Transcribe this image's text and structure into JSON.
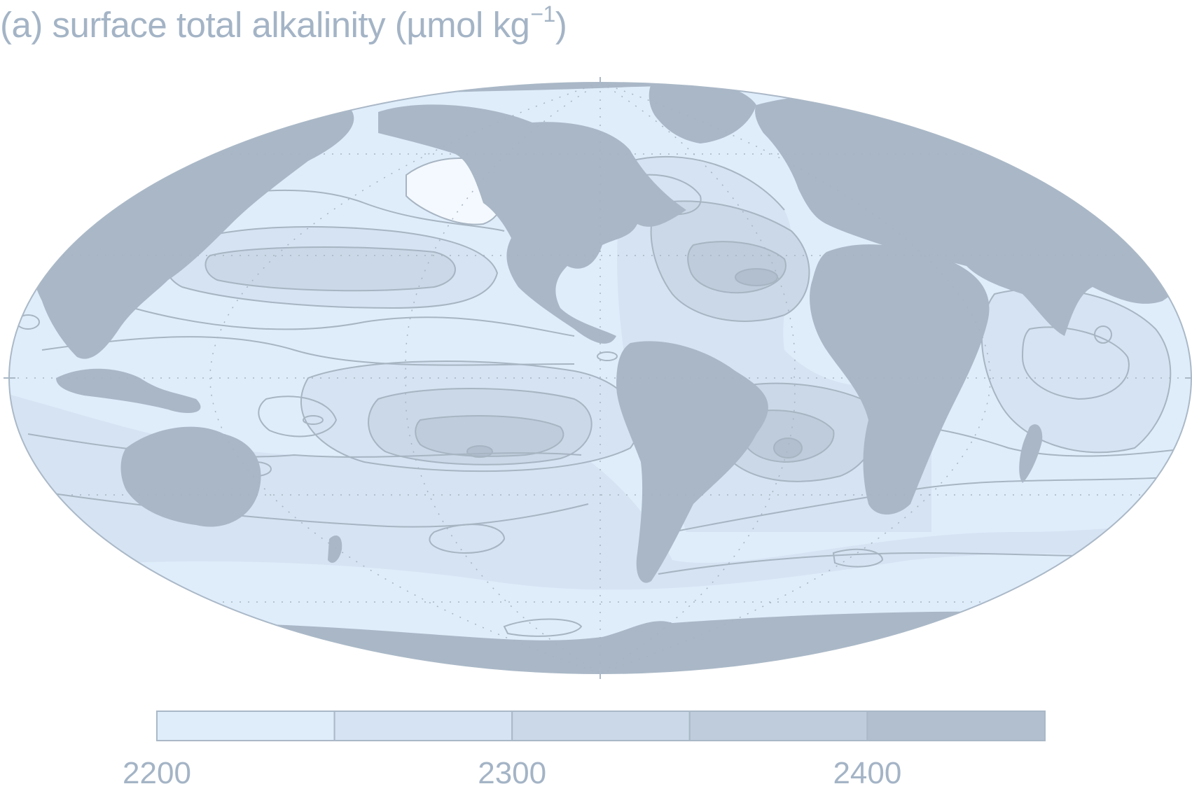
{
  "map": {
    "title_main": "(a) surface total alkalinity (",
    "title_mu": "µ",
    "title_unit": "mol kg",
    "title_sup": "−1",
    "title_close": ")",
    "projection": "mollweide",
    "units": "µmol kg−1"
  },
  "colorbar": {
    "min": 2200,
    "max": 2450,
    "boundaries": [
      2200,
      2250,
      2300,
      2350,
      2400,
      2450
    ],
    "colors": [
      "#dfedfb",
      "#d5e3f2",
      "#cbd8e7",
      "#bfccdb",
      "#b1bfcf"
    ],
    "tick_values": [
      2200,
      2300,
      2400
    ],
    "tick_labels": [
      "2200",
      "2300",
      "2400"
    ]
  },
  "colors": {
    "land": "#a9b7c6",
    "ocean_low": "#dfedfb",
    "contour": "#a7b4c2",
    "text": "#a4b4c6",
    "frame": "#aab8c7"
  }
}
